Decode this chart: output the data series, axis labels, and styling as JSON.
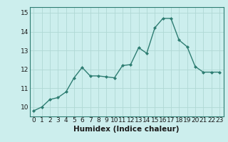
{
  "x": [
    0,
    1,
    2,
    3,
    4,
    5,
    6,
    7,
    8,
    9,
    10,
    11,
    12,
    13,
    14,
    15,
    16,
    17,
    18,
    19,
    20,
    21,
    22,
    23
  ],
  "y": [
    9.8,
    10.0,
    10.4,
    10.5,
    10.8,
    11.55,
    12.1,
    11.65,
    11.65,
    11.6,
    11.55,
    12.2,
    12.25,
    13.15,
    12.85,
    14.2,
    14.7,
    14.7,
    13.55,
    13.2,
    12.15,
    11.85,
    11.85,
    11.85
  ],
  "line_color": "#2e7d72",
  "marker": "D",
  "marker_size": 2.0,
  "bg_color": "#cceeed",
  "grid_color": "#b0d8d5",
  "xlabel": "Humidex (Indice chaleur)",
  "ylim": [
    9.5,
    15.3
  ],
  "yticks": [
    10,
    11,
    12,
    13,
    14,
    15
  ],
  "xticks": [
    0,
    1,
    2,
    3,
    4,
    5,
    6,
    7,
    8,
    9,
    10,
    11,
    12,
    13,
    14,
    15,
    16,
    17,
    18,
    19,
    20,
    21,
    22,
    23
  ],
  "tick_fontsize": 6.5,
  "xlabel_fontsize": 7.5,
  "linewidth": 1.0
}
